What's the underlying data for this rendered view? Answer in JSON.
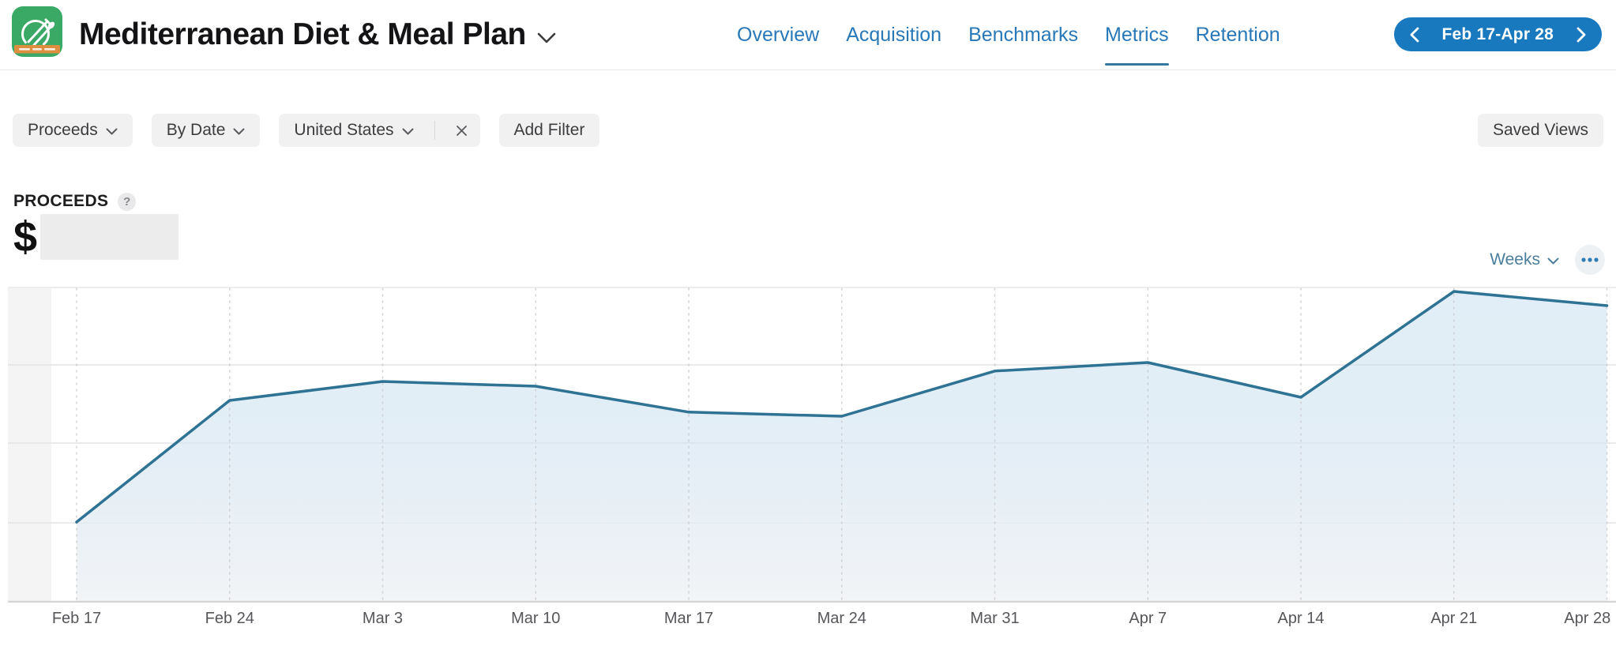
{
  "app": {
    "name": "Mediterranean Diet & Meal Plan",
    "icon": {
      "bg_color": "#3BA966",
      "band_color": "#DD8E3E",
      "glyph": "plate-with-fork-and-spoon"
    }
  },
  "nav": {
    "items": [
      {
        "label": "Overview",
        "active": false
      },
      {
        "label": "Acquisition",
        "active": false
      },
      {
        "label": "Benchmarks",
        "active": false
      },
      {
        "label": "Metrics",
        "active": true
      },
      {
        "label": "Retention",
        "active": false
      }
    ]
  },
  "date_range": {
    "label": "Feb 17-Apr 28"
  },
  "filters": {
    "metric": "Proceeds",
    "group_by": "By Date",
    "territory": "United States",
    "add_filter": "Add Filter",
    "saved_views": "Saved Views"
  },
  "metric_panel": {
    "title": "PROCEEDS",
    "help": "?",
    "currency": "$",
    "value_hidden": true
  },
  "chart_controls": {
    "granularity": "Weeks"
  },
  "chart_data": {
    "type": "area",
    "title": "Proceeds by week",
    "categories": [
      "Feb 17",
      "Feb 24",
      "Mar 3",
      "Mar 10",
      "Mar 17",
      "Mar 24",
      "Mar 31",
      "Apr 7",
      "Apr 14",
      "Apr 21",
      "Apr 28"
    ],
    "values_pct_of_plot_height": [
      25.5,
      64.0,
      70.0,
      68.5,
      60.3,
      59.0,
      73.3,
      76.0,
      65.0,
      98.5,
      94.0
    ],
    "note": "Dollar amounts are redacted in the UI; values are relative heights (0-100) read from the plot",
    "x_tick_pct": [
      4.74,
      14.21,
      23.68,
      33.15,
      42.62,
      52.09,
      61.56,
      71.03,
      80.5,
      89.97,
      99.44
    ],
    "ylim": [
      0,
      100
    ],
    "horizontal_gridlines_pct": [
      25.25,
      50.5,
      75.25
    ],
    "grid": "3 horizontal gridlines + dotted vertical line per week tick",
    "legend": "none",
    "xlabel": "",
    "ylabel": "",
    "line_color": "#2e7294",
    "fill_top_color": "rgba(183,214,235,0.40)",
    "fill_bottom_color": "rgba(240,242,245,0.85)"
  },
  "colors": {
    "accent_blue": "#1879bf",
    "nav_blue": "#2878b8",
    "active_tab_underline": "#35789f",
    "pill_bg": "#f1f1f2",
    "pill_text": "#3d3d3f",
    "gridline": "#e4e4e6",
    "axis_line": "#d4d4d6"
  }
}
